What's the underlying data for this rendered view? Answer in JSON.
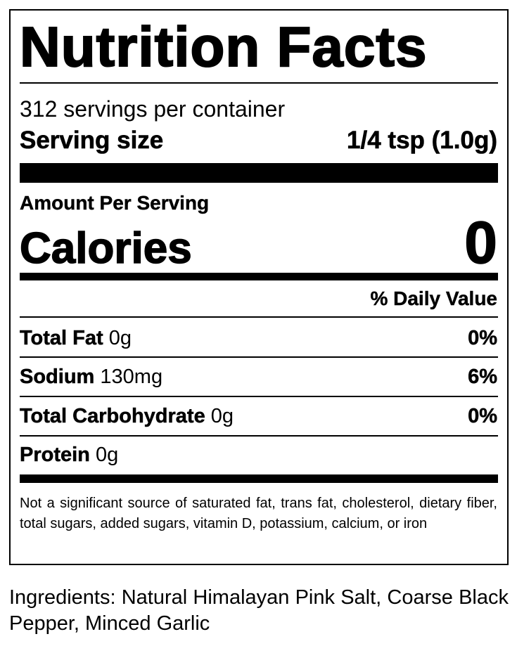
{
  "title": "Nutrition Facts",
  "servings_per_container": "312 servings per container",
  "serving_size": {
    "label": "Serving size",
    "value": "1/4 tsp (1.0g)"
  },
  "amount_per_serving": "Amount Per Serving",
  "calories": {
    "label": "Calories",
    "value": "0"
  },
  "daily_value_header": "% Daily Value",
  "nutrients": [
    {
      "name": "Total Fat",
      "amount": "0g",
      "dv": "0%"
    },
    {
      "name": "Sodium",
      "amount": "130mg",
      "dv": "6%"
    },
    {
      "name": "Total Carbohydrate",
      "amount": "0g",
      "dv": "0%"
    },
    {
      "name": "Protein",
      "amount": "0g",
      "dv": ""
    }
  ],
  "footnote": "Not a significant source of saturated fat, trans fat, cholesterol, dietary fiber, total sugars, added sugars, vitamin D, potassium, calcium, or iron",
  "ingredients": "Ingredients: Natural Himalayan Pink Salt, Coarse Black Pepper, Minced Garlic"
}
